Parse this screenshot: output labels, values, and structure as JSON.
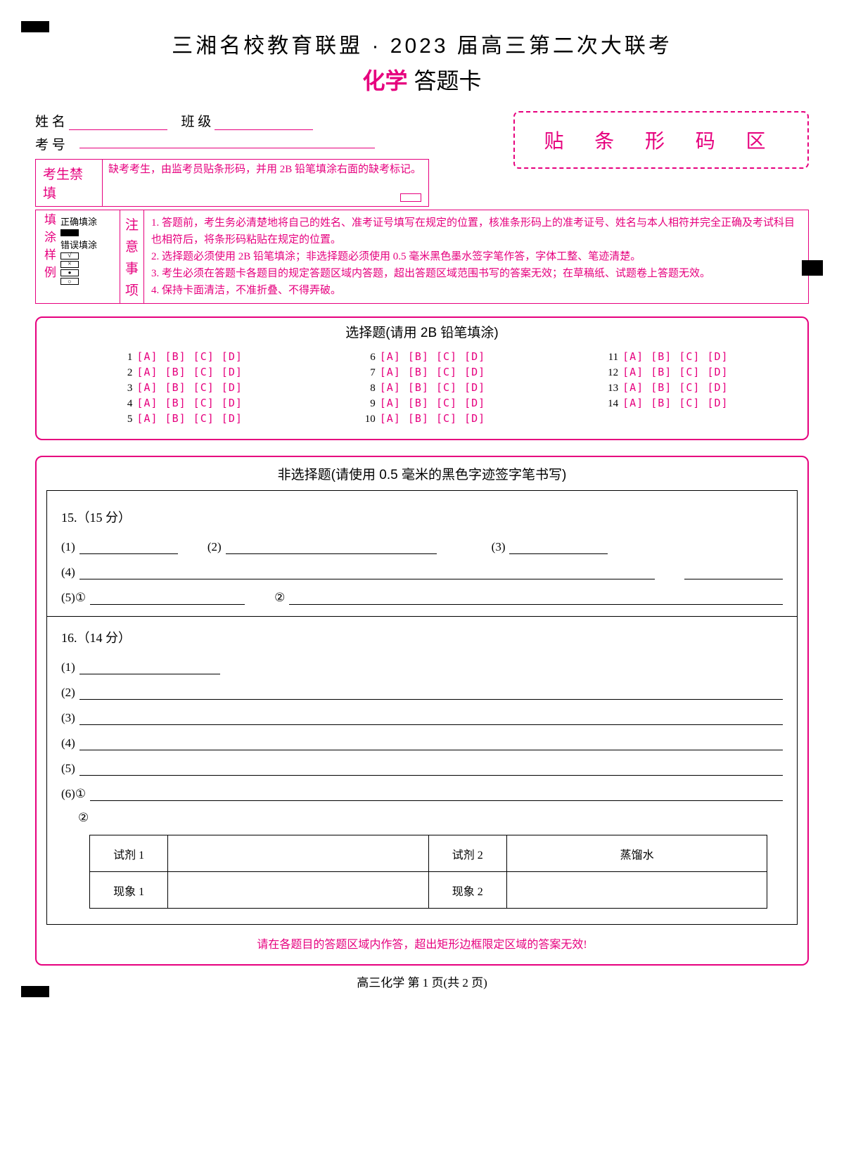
{
  "accentColor": "#e6007e",
  "title_line1": "三湘名校教育联盟 · 2023 届高三第二次大联考",
  "subject": "化学",
  "answer_card": "答题卡",
  "fields": {
    "name_label": "姓  名",
    "class_label": "班  级",
    "examid_label": "考  号"
  },
  "barcode_label": "贴 条 形 码 区",
  "forbid": {
    "label": "考生禁填",
    "text": "缺考考生，由监考员贴条形码，并用 2B 铅笔填涂右面的缺考标记。"
  },
  "fill_sample": {
    "vlabel": "填涂样例",
    "correct_label": "正确填涂",
    "wrong_label": "错误填涂"
  },
  "notice": {
    "vlabel": "注意事项",
    "items": [
      "1. 答题前，考生务必清楚地将自己的姓名、准考证号填写在规定的位置，核准条形码上的准考证号、姓名与本人相符并完全正确及考试科目也相符后，将条形码粘贴在规定的位置。",
      "2. 选择题必须使用 2B 铅笔填涂；非选择题必须使用 0.5 毫米黑色墨水签字笔作答，字体工整、笔迹清楚。",
      "3. 考生必须在答题卡各题目的规定答题区域内答题，超出答题区域范围书写的答案无效；在草稿纸、试题卷上答题无效。",
      "4. 保持卡面清洁，不准折叠、不得弄破。"
    ]
  },
  "mcq": {
    "title": "选择题(请用 2B 铅笔填涂)",
    "options": "[A] [B] [C] [D]",
    "cols": [
      [
        1,
        2,
        3,
        4,
        5
      ],
      [
        6,
        7,
        8,
        9,
        10
      ],
      [
        11,
        12,
        13,
        14
      ]
    ]
  },
  "frq": {
    "title": "非选择题(请使用 0.5 毫米的黑色字迹签字笔书写)",
    "q15": {
      "head": "15.（15 分）",
      "parts": {
        "p1": "(1)",
        "p2": "(2)",
        "p3": "(3)",
        "p4": "(4)",
        "p5a": "(5)①",
        "p5b": "②"
      }
    },
    "q16": {
      "head": "16.（14 分）",
      "parts": {
        "p1": "(1)",
        "p2": "(2)",
        "p3": "(3)",
        "p4": "(4)",
        "p5": "(5)",
        "p6a": "(6)①",
        "p6b": "②"
      },
      "table": {
        "r1c1": "试剂 1",
        "r1c3": "试剂 2",
        "r1c4": "蒸馏水",
        "r2c1": "现象 1",
        "r2c3": "现象 2"
      }
    }
  },
  "footer_warn": "请在各题目的答题区域内作答，超出矩形边框限定区域的答案无效!",
  "page_foot": "高三化学  第 1 页(共 2 页)"
}
